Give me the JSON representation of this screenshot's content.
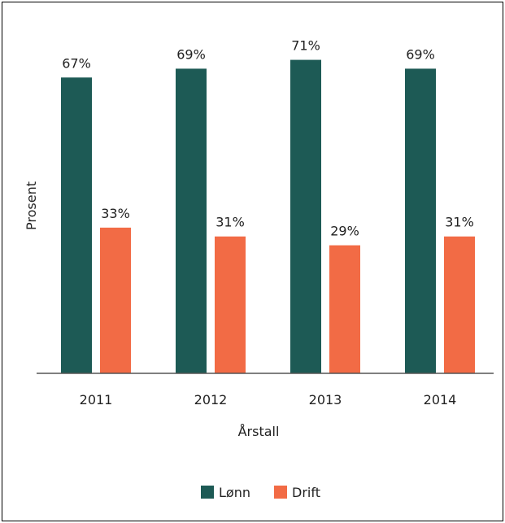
{
  "chart_data": {
    "type": "bar",
    "title": "",
    "xlabel": "Årstall",
    "ylabel": "Prosent",
    "categories": [
      "2011",
      "2012",
      "2013",
      "2014"
    ],
    "series": [
      {
        "name": "Lønn",
        "values": [
          67,
          69,
          71,
          69
        ],
        "labels": [
          "67%",
          "69%",
          "71%",
          "69%"
        ],
        "color": "#1d5a55"
      },
      {
        "name": "Drift",
        "values": [
          33,
          31,
          29,
          31
        ],
        "labels": [
          "33%",
          "31%",
          "29%",
          "31%"
        ],
        "color": "#f26b45"
      }
    ],
    "ylim": [
      0,
      84
    ],
    "grid": false,
    "legend": "bottom"
  }
}
